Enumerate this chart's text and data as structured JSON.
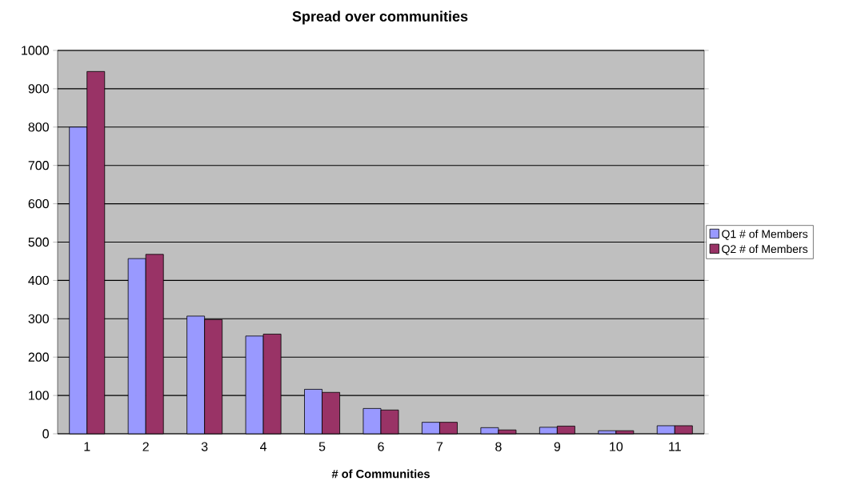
{
  "chart_data": {
    "type": "bar",
    "title": "Spread over communities",
    "xlabel": "# of Communities",
    "categories": [
      "1",
      "2",
      "3",
      "4",
      "5",
      "6",
      "7",
      "8",
      "9",
      "10",
      "11"
    ],
    "series": [
      {
        "name": "Q1 # of Members",
        "color": "#9999ff",
        "values": [
          800,
          457,
          307,
          255,
          116,
          66,
          30,
          16,
          17,
          8,
          21
        ]
      },
      {
        "name": "Q2 # of Members",
        "color": "#993366",
        "values": [
          945,
          468,
          298,
          260,
          108,
          62,
          30,
          10,
          20,
          8,
          21
        ]
      }
    ],
    "ylim": [
      0,
      1000
    ],
    "yticks": [
      0,
      100,
      200,
      300,
      400,
      500,
      600,
      700,
      800,
      900,
      1000
    ],
    "grid": "y",
    "legend": "right"
  }
}
